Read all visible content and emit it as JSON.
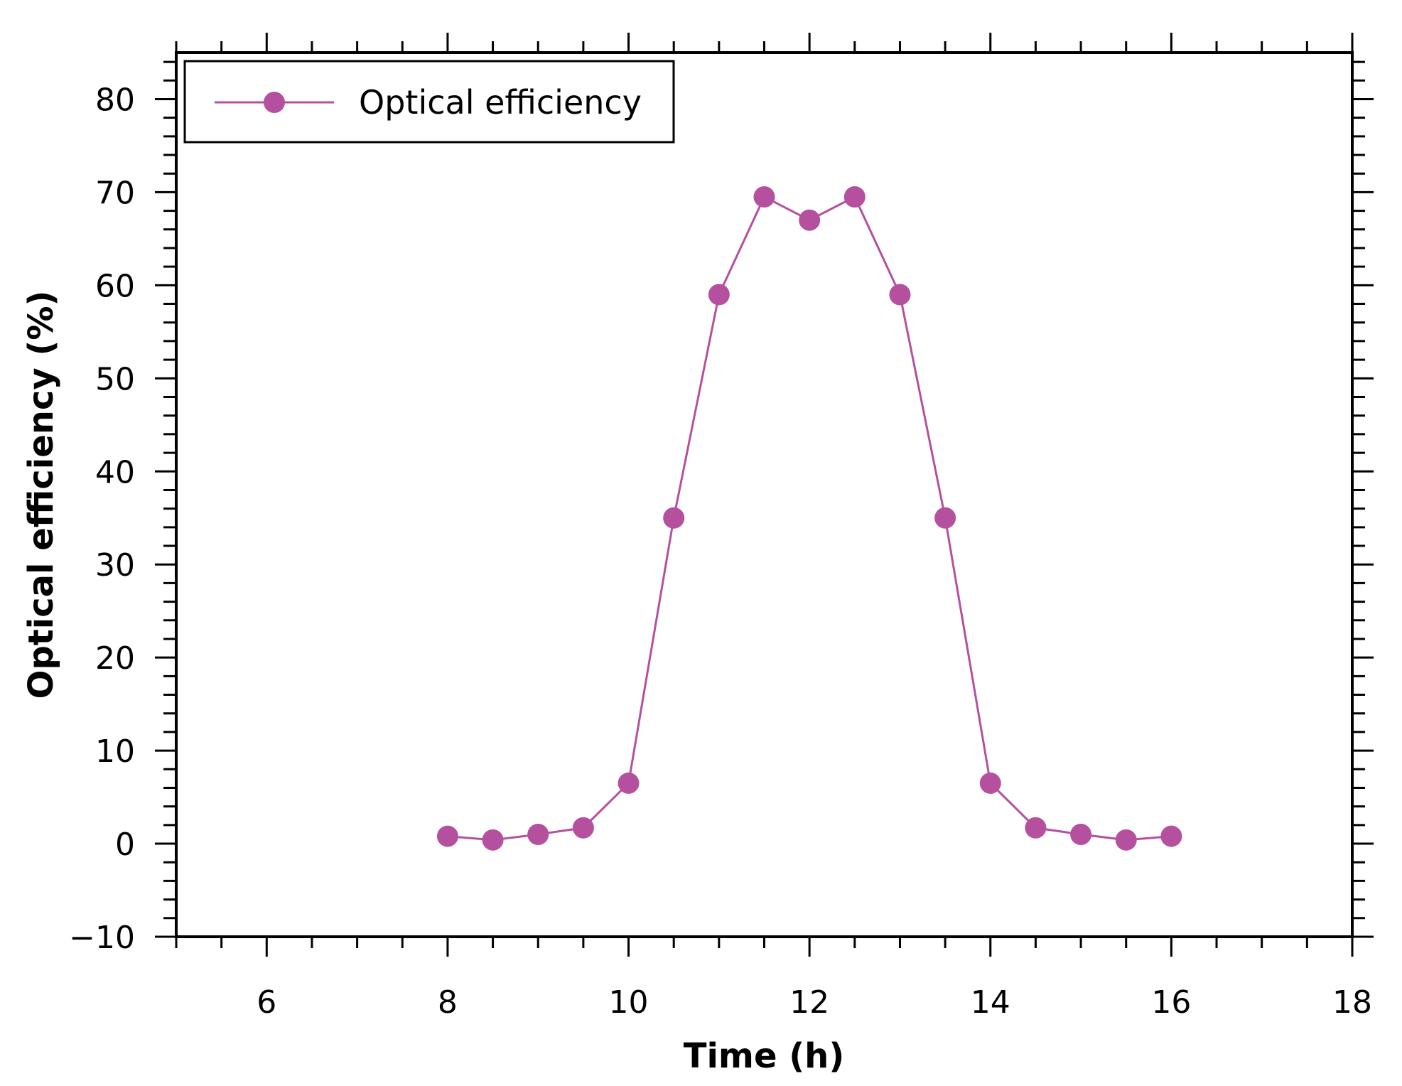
{
  "chart_data": {
    "type": "line",
    "title": "",
    "xlabel": "Time (h)",
    "ylabel": "Optical efficiency  (%)",
    "xlim": [
      5,
      18
    ],
    "ylim": [
      -10,
      85
    ],
    "xticks": [
      6,
      8,
      10,
      12,
      14,
      16,
      18
    ],
    "yticks": [
      -10,
      0,
      10,
      20,
      30,
      40,
      50,
      60,
      70,
      80
    ],
    "x_tick_labels": [
      "6",
      "8",
      "10",
      "12",
      "14",
      "16",
      "18"
    ],
    "y_tick_labels": [
      "−10",
      "0",
      "10",
      "20",
      "30",
      "40",
      "50",
      "60",
      "70",
      "80"
    ],
    "grid": false,
    "legend": {
      "position": "top-left",
      "entries": [
        "Optical efficiency"
      ]
    },
    "series": [
      {
        "name": "Optical efficiency",
        "color": "#b5509f",
        "marker": "circle",
        "x": [
          8,
          8.5,
          9,
          9.5,
          10,
          10.5,
          11,
          11.5,
          12,
          12.5,
          13,
          13.5,
          14,
          14.5,
          15,
          15.5,
          16
        ],
        "y": [
          0.8,
          0.4,
          1.0,
          1.7,
          6.5,
          35,
          59,
          69.5,
          67,
          69.5,
          59,
          35,
          6.5,
          1.7,
          1.0,
          0.4,
          0.8
        ]
      }
    ]
  }
}
